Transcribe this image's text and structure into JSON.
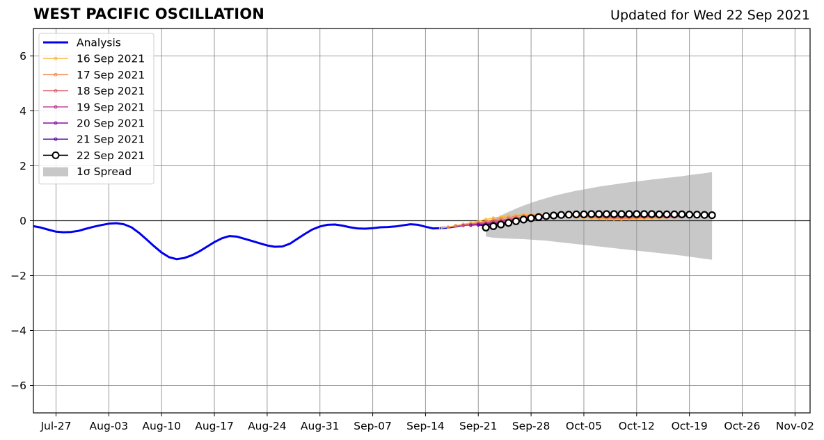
{
  "header": {
    "title": "WEST PACIFIC OSCILLATION",
    "updated": "Updated for Wed 22 Sep 2021"
  },
  "colors": {
    "analysis": "#0000ee",
    "spread": "#c8c8c8",
    "grid": "#999999",
    "forecasts": {
      "16 Sep 2021": "#f9b93a",
      "17 Sep 2021": "#f1894b",
      "18 Sep 2021": "#db5c68",
      "19 Sep 2021": "#b83289",
      "20 Sep 2021": "#8b0aa5",
      "21 Sep 2021": "#5402a3",
      "22 Sep 2021": "#000000"
    }
  },
  "chart_data": {
    "type": "line",
    "title": "WEST PACIFIC OSCILLATION",
    "subtitle": "Updated for Wed 22 Sep 2021",
    "xlabel": "",
    "ylabel": "",
    "xlim": [
      "2021-07-24",
      "2021-11-04"
    ],
    "ylim": [
      -7,
      7
    ],
    "yticks": [
      -6,
      -4,
      -2,
      0,
      2,
      4,
      6
    ],
    "ytick_labels": [
      "−6",
      "−4",
      "−2",
      "0",
      "2",
      "4",
      "6"
    ],
    "xticks": [
      "2021-07-27",
      "2021-08-03",
      "2021-08-10",
      "2021-08-17",
      "2021-08-24",
      "2021-08-31",
      "2021-09-07",
      "2021-09-14",
      "2021-09-21",
      "2021-09-28",
      "2021-10-05",
      "2021-10-12",
      "2021-10-19",
      "2021-10-26",
      "2021-11-02"
    ],
    "xtick_labels": [
      "Jul-27",
      "Aug-03",
      "Aug-10",
      "Aug-17",
      "Aug-24",
      "Aug-31",
      "Sep-07",
      "Sep-14",
      "Sep-21",
      "Sep-28",
      "Oct-05",
      "Oct-12",
      "Oct-19",
      "Oct-26",
      "Nov-02"
    ],
    "grid": true,
    "zero_line": true,
    "legend_position": "top-left",
    "series": [
      {
        "name": "Analysis",
        "kind": "analysis",
        "points": [
          [
            "2021-07-24",
            -0.2
          ],
          [
            "2021-07-25",
            -0.25
          ],
          [
            "2021-07-26",
            -0.33
          ],
          [
            "2021-07-27",
            -0.4
          ],
          [
            "2021-07-28",
            -0.42
          ],
          [
            "2021-07-29",
            -0.41
          ],
          [
            "2021-07-30",
            -0.37
          ],
          [
            "2021-07-31",
            -0.29
          ],
          [
            "2021-08-01",
            -0.22
          ],
          [
            "2021-08-02",
            -0.16
          ],
          [
            "2021-08-03",
            -0.11
          ],
          [
            "2021-08-04",
            -0.09
          ],
          [
            "2021-08-05",
            -0.13
          ],
          [
            "2021-08-06",
            -0.24
          ],
          [
            "2021-08-07",
            -0.44
          ],
          [
            "2021-08-08",
            -0.68
          ],
          [
            "2021-08-09",
            -0.93
          ],
          [
            "2021-08-10",
            -1.16
          ],
          [
            "2021-08-11",
            -1.33
          ],
          [
            "2021-08-12",
            -1.4
          ],
          [
            "2021-08-13",
            -1.36
          ],
          [
            "2021-08-14",
            -1.26
          ],
          [
            "2021-08-15",
            -1.12
          ],
          [
            "2021-08-16",
            -0.95
          ],
          [
            "2021-08-17",
            -0.78
          ],
          [
            "2021-08-18",
            -0.64
          ],
          [
            "2021-08-19",
            -0.56
          ],
          [
            "2021-08-20",
            -0.58
          ],
          [
            "2021-08-21",
            -0.66
          ],
          [
            "2021-08-22",
            -0.74
          ],
          [
            "2021-08-23",
            -0.82
          ],
          [
            "2021-08-24",
            -0.9
          ],
          [
            "2021-08-25",
            -0.95
          ],
          [
            "2021-08-26",
            -0.94
          ],
          [
            "2021-08-27",
            -0.84
          ],
          [
            "2021-08-28",
            -0.66
          ],
          [
            "2021-08-29",
            -0.48
          ],
          [
            "2021-08-30",
            -0.32
          ],
          [
            "2021-08-31",
            -0.21
          ],
          [
            "2021-09-01",
            -0.15
          ],
          [
            "2021-09-02",
            -0.14
          ],
          [
            "2021-09-03",
            -0.18
          ],
          [
            "2021-09-04",
            -0.24
          ],
          [
            "2021-09-05",
            -0.28
          ],
          [
            "2021-09-06",
            -0.29
          ],
          [
            "2021-09-07",
            -0.27
          ],
          [
            "2021-09-08",
            -0.24
          ],
          [
            "2021-09-09",
            -0.23
          ],
          [
            "2021-09-10",
            -0.21
          ],
          [
            "2021-09-11",
            -0.17
          ],
          [
            "2021-09-12",
            -0.13
          ],
          [
            "2021-09-13",
            -0.15
          ],
          [
            "2021-09-14",
            -0.22
          ],
          [
            "2021-09-15",
            -0.28
          ],
          [
            "2021-09-16",
            -0.27
          ],
          [
            "2021-09-17",
            -0.25
          ],
          [
            "2021-09-18",
            -0.21
          ],
          [
            "2021-09-19",
            -0.16
          ],
          [
            "2021-09-20",
            -0.12
          ],
          [
            "2021-09-21",
            -0.14
          ],
          [
            "2021-09-22",
            -0.17
          ]
        ]
      },
      {
        "name": "16 Sep 2021",
        "kind": "forecast",
        "start": "2021-09-16",
        "values": [
          -0.27,
          -0.23,
          -0.18,
          -0.13,
          -0.08,
          -0.02,
          0.05,
          0.1,
          0.14,
          0.18,
          0.2,
          0.22,
          0.22,
          0.21,
          0.2,
          0.18,
          0.16,
          0.14,
          0.13,
          0.11,
          0.1,
          0.08,
          0.06,
          0.05,
          0.05,
          0.06,
          0.07,
          0.08,
          0.09,
          0.1,
          0.1
        ]
      },
      {
        "name": "17 Sep 2021",
        "kind": "forecast",
        "start": "2021-09-17",
        "values": [
          -0.24,
          -0.2,
          -0.16,
          -0.12,
          -0.07,
          -0.02,
          0.03,
          0.08,
          0.12,
          0.16,
          0.19,
          0.21,
          0.22,
          0.22,
          0.21,
          0.2,
          0.18,
          0.16,
          0.14,
          0.12,
          0.1,
          0.09,
          0.08,
          0.08,
          0.09,
          0.1,
          0.11,
          0.12,
          0.12,
          0.12,
          0.12
        ]
      },
      {
        "name": "18 Sep 2021",
        "kind": "forecast",
        "start": "2021-09-18",
        "values": [
          -0.2,
          -0.17,
          -0.14,
          -0.1,
          -0.06,
          -0.02,
          0.02,
          0.06,
          0.1,
          0.14,
          0.17,
          0.2,
          0.21,
          0.22,
          0.22,
          0.21,
          0.2,
          0.18,
          0.16,
          0.14,
          0.13,
          0.12,
          0.12,
          0.12,
          0.13,
          0.13,
          0.14,
          0.14,
          0.14,
          0.14,
          0.14
        ]
      },
      {
        "name": "19 Sep 2021",
        "kind": "forecast",
        "start": "2021-09-19",
        "values": [
          -0.18,
          -0.16,
          -0.13,
          -0.1,
          -0.06,
          -0.02,
          0.02,
          0.06,
          0.1,
          0.13,
          0.16,
          0.18,
          0.2,
          0.21,
          0.21,
          0.21,
          0.2,
          0.19,
          0.18,
          0.17,
          0.16,
          0.16,
          0.16,
          0.16,
          0.16,
          0.17,
          0.17,
          0.17,
          0.17,
          0.17,
          0.17
        ]
      },
      {
        "name": "20 Sep 2021",
        "kind": "forecast",
        "start": "2021-09-20",
        "values": [
          -0.17,
          -0.15,
          -0.13,
          -0.1,
          -0.07,
          -0.03,
          0.01,
          0.05,
          0.09,
          0.12,
          0.15,
          0.17,
          0.19,
          0.2,
          0.21,
          0.21,
          0.21,
          0.2,
          0.2,
          0.19,
          0.19,
          0.19,
          0.19,
          0.19,
          0.19,
          0.19,
          0.19,
          0.19,
          0.19,
          0.19,
          0.19
        ]
      },
      {
        "name": "21 Sep 2021",
        "kind": "forecast",
        "start": "2021-09-21",
        "values": [
          -0.16,
          -0.15,
          -0.13,
          -0.11,
          -0.08,
          -0.04,
          0.0,
          0.04,
          0.08,
          0.11,
          0.14,
          0.16,
          0.18,
          0.2,
          0.21,
          0.21,
          0.21,
          0.21,
          0.21,
          0.21,
          0.21,
          0.21,
          0.21,
          0.21,
          0.21,
          0.21,
          0.21,
          0.21,
          0.2,
          0.2,
          0.2
        ]
      },
      {
        "name": "22 Sep 2021",
        "kind": "current",
        "start": "2021-09-22",
        "values": [
          -0.25,
          -0.2,
          -0.14,
          -0.08,
          -0.02,
          0.04,
          0.09,
          0.13,
          0.17,
          0.19,
          0.21,
          0.22,
          0.23,
          0.23,
          0.24,
          0.24,
          0.24,
          0.24,
          0.24,
          0.24,
          0.24,
          0.24,
          0.24,
          0.23,
          0.23,
          0.23,
          0.23,
          0.22,
          0.22,
          0.21,
          0.2
        ]
      }
    ],
    "spread": {
      "name": "1σ Spread",
      "start": "2021-09-22",
      "upper": [
        -0.1,
        0.05,
        0.19,
        0.32,
        0.44,
        0.55,
        0.65,
        0.74,
        0.82,
        0.9,
        0.97,
        1.03,
        1.09,
        1.14,
        1.19,
        1.24,
        1.28,
        1.32,
        1.36,
        1.4,
        1.43,
        1.46,
        1.5,
        1.53,
        1.56,
        1.59,
        1.62,
        1.66,
        1.7,
        1.73,
        1.77
      ],
      "lower": [
        -0.58,
        -0.62,
        -0.64,
        -0.65,
        -0.66,
        -0.67,
        -0.69,
        -0.71,
        -0.73,
        -0.76,
        -0.79,
        -0.82,
        -0.85,
        -0.88,
        -0.91,
        -0.94,
        -0.97,
        -1.0,
        -1.03,
        -1.06,
        -1.09,
        -1.12,
        -1.15,
        -1.18,
        -1.21,
        -1.24,
        -1.27,
        -1.31,
        -1.35,
        -1.39,
        -1.42
      ]
    }
  }
}
